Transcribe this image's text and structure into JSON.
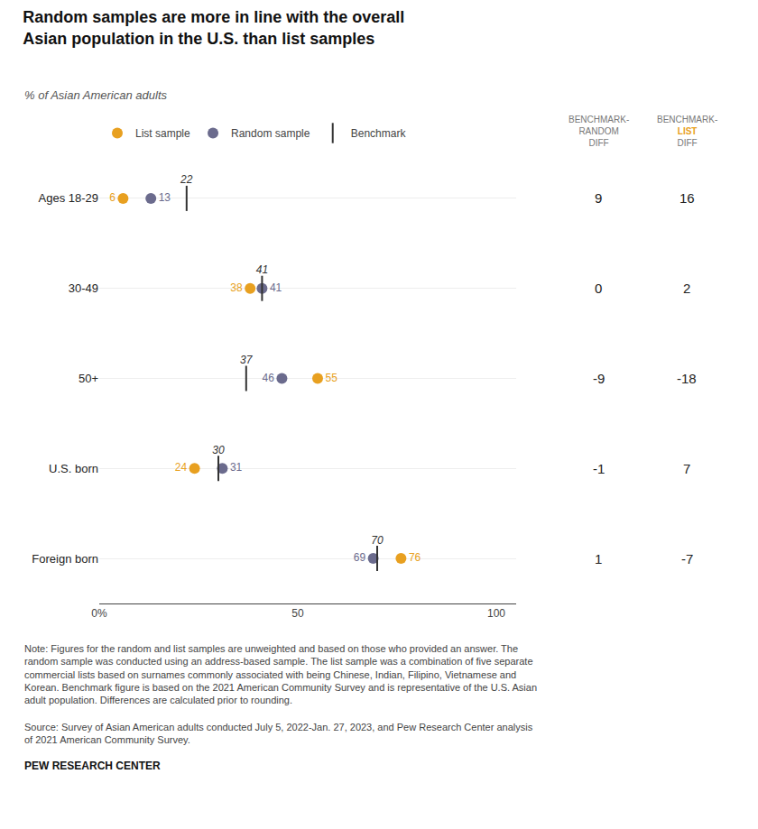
{
  "chart_data": {
    "type": "dot",
    "title": "Random samples are more in line with the overall\nAsian population in the U.S. than list samples",
    "subtitle": "% of Asian American adults",
    "categories": [
      "Ages 18-29",
      "30-49",
      "50+",
      "U.S. born",
      "Foreign born"
    ],
    "series": [
      {
        "name": "List sample",
        "color": "#E8A020",
        "marker": "circle",
        "values": [
          6,
          38,
          55,
          24,
          76
        ]
      },
      {
        "name": "Random sample",
        "color": "#6B6B8D",
        "marker": "circle",
        "values": [
          13,
          41,
          46,
          31,
          69
        ]
      },
      {
        "name": "Benchmark",
        "color": "#333333",
        "marker": "line",
        "values": [
          22,
          41,
          37,
          30,
          70
        ]
      }
    ],
    "xlim": [
      0,
      105
    ],
    "xticks": [
      {
        "value": 0,
        "label": "0%"
      },
      50,
      100
    ],
    "grid": true,
    "legend": "top",
    "data_labels": true,
    "table": {
      "columns": [
        {
          "header": [
            "BENCHMARK-",
            "RANDOM",
            "DIFF"
          ],
          "values": [
            9,
            0,
            -9,
            -1,
            1
          ]
        },
        {
          "header": [
            "BENCHMARK-",
            "LIST",
            "DIFF"
          ],
          "color": "#E8A020",
          "values": [
            16,
            2,
            -18,
            7,
            -7
          ]
        }
      ]
    },
    "note": "Note: Figures for the random and list samples are unweighted and based on those who provided an answer. The random sample was conducted using an address-based sample. The list sample was a combination of five separate commercial lists based on surnames commonly associated with being Chinese, Indian, Filipino, Vietnamese and Korean. Benchmark figure is based on the 2021 American Community Survey and is representative of the U.S. Asian adult population. Differences are calculated prior to rounding.",
    "source": "Source: Survey of Asian American adults conducted July 5, 2022-Jan. 27, 2023, and Pew Research Center analysis of 2021 American Community Survey.",
    "credit": "PEW RESEARCH CENTER"
  }
}
